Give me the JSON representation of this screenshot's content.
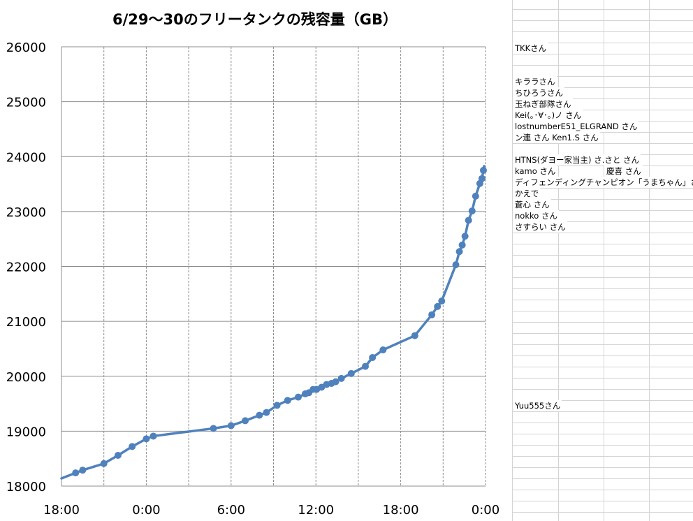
{
  "chart_data": {
    "type": "line",
    "title": "6/29～30のフリータンクの残容量（GB）",
    "xlabel": "",
    "ylabel": "",
    "x_tick_labels": [
      "18:00",
      "0:00",
      "6:00",
      "12:00",
      "18:00",
      "0:00"
    ],
    "x_tick_hours": [
      0,
      6,
      12,
      18,
      24,
      30
    ],
    "xlim_hours": [
      0,
      30
    ],
    "ylim": [
      18000,
      26000
    ],
    "y_ticks": [
      18000,
      19000,
      20000,
      21000,
      22000,
      23000,
      24000,
      25000,
      26000
    ],
    "grid": {
      "y_major": true,
      "x_major": "dashed"
    },
    "series": [
      {
        "color": "#4f81bd",
        "x_hours": [
          1.0,
          1.5,
          3.0,
          4.0,
          5.0,
          6.0,
          6.5,
          10.75,
          12.0,
          13.0,
          14.0,
          14.5,
          15.25,
          16.0,
          16.75,
          17.25,
          17.5,
          17.8,
          18.05,
          18.4,
          18.75,
          19.1,
          19.4,
          19.8,
          20.5,
          21.5,
          22.0,
          22.75,
          25.0,
          26.2,
          26.6,
          26.9,
          27.9,
          28.15,
          28.35,
          28.55,
          28.8,
          29.05,
          29.3,
          29.6,
          29.75,
          29.85
        ],
        "values": [
          18240,
          18290,
          18410,
          18560,
          18720,
          18860,
          18910,
          19050,
          19100,
          19190,
          19290,
          19340,
          19470,
          19560,
          19620,
          19680,
          19700,
          19760,
          19760,
          19800,
          19850,
          19870,
          19900,
          19960,
          20050,
          20180,
          20340,
          20480,
          20740,
          21120,
          21270,
          21370,
          22030,
          22270,
          22390,
          22550,
          22840,
          23010,
          23280,
          23510,
          23600,
          23750
        ]
      }
    ]
  },
  "sheet": {
    "cells": [
      {
        "text": "TKKさん"
      },
      {
        "text": "キララさん"
      },
      {
        "text": "ちひろうさん"
      },
      {
        "text": "玉ねぎ部隊さん"
      },
      {
        "text": "Kei(｡･∀･｡)ノ さん"
      },
      {
        "text": "lostnumberE51_ELGRAND さん"
      },
      {
        "text": "ン連 さん    Ken1.S さん"
      },
      {
        "text": "HTNS(ダヨー家当主) さ.さと さん"
      },
      {
        "text": "kamo さん"
      },
      {
        "text": "慶喜 さん"
      },
      {
        "text": "ディフェンディングチャンピオン「うまちゃん」さん"
      },
      {
        "text": "かえで"
      },
      {
        "text": "蒼心 さん"
      },
      {
        "text": "nokko さん"
      },
      {
        "text": "さすらい さん"
      },
      {
        "text": "Yuu555さん"
      }
    ]
  }
}
